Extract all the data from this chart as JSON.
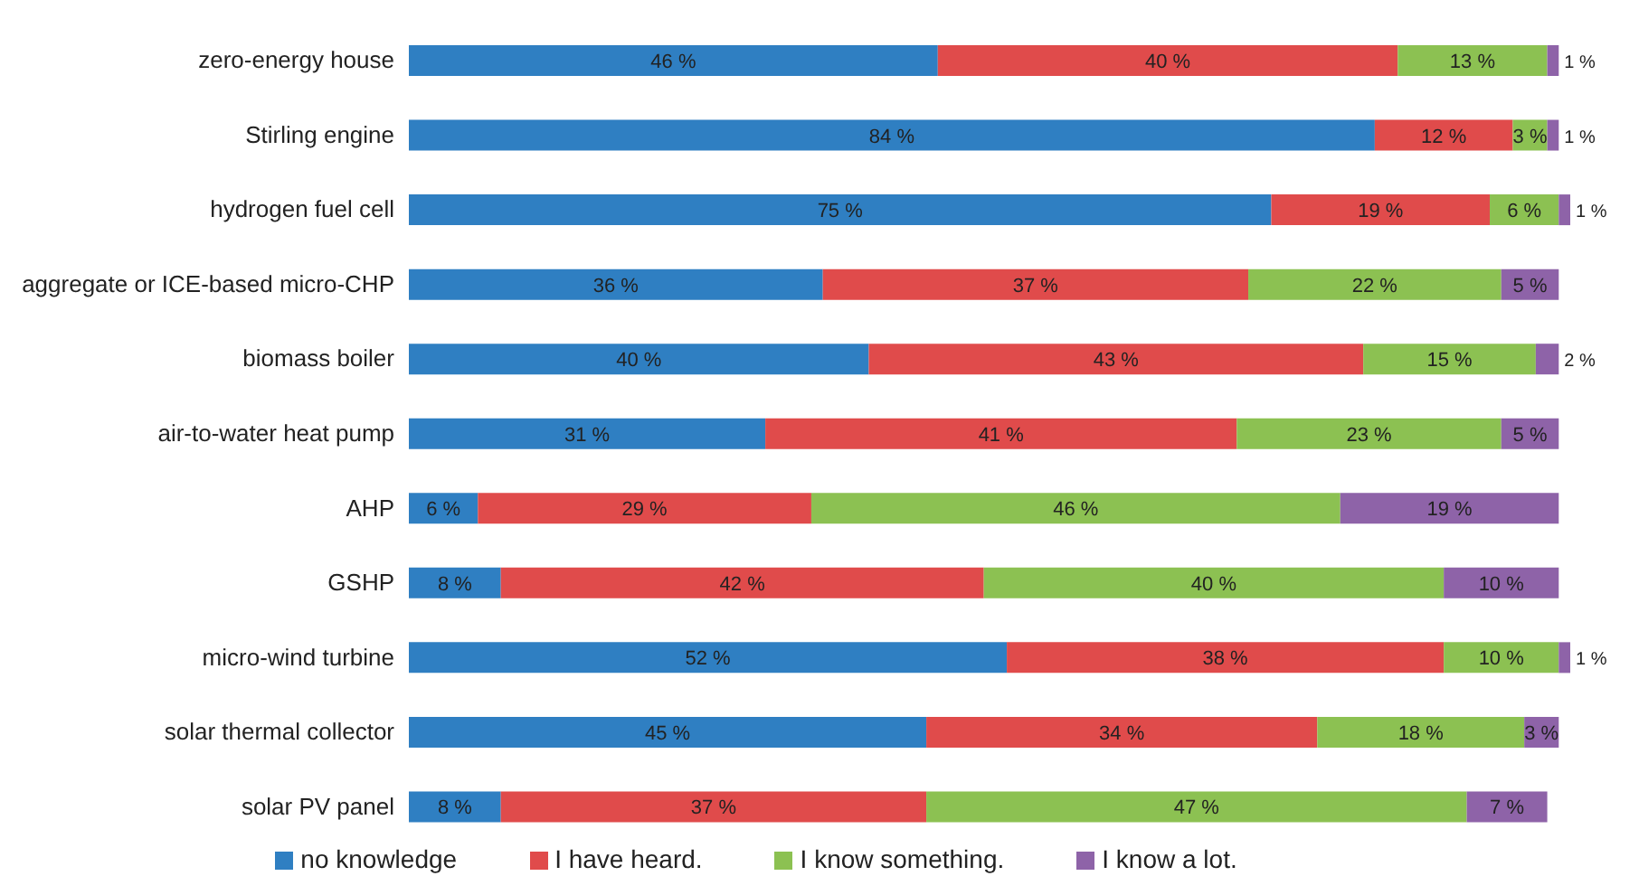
{
  "chart_data": {
    "type": "bar",
    "orientation": "horizontal",
    "stacked": true,
    "legend": "bottom",
    "grid": false,
    "tick_labels": "y",
    "xlim": [
      0,
      101
    ],
    "categories": [
      "zero-energy house",
      "Stirling engine",
      "hydrogen fuel cell",
      "aggregate or ICE-based micro-CHP",
      "biomass boiler",
      "air-to-water heat pump",
      "AHP",
      "GSHP",
      "micro-wind turbine",
      "solar thermal collector",
      "solar PV panel"
    ],
    "series": [
      {
        "name": "no knowledge",
        "color": "#2f7fc2",
        "values": [
          46,
          84,
          75,
          36,
          40,
          31,
          6,
          8,
          52,
          45,
          8
        ],
        "value_labels": [
          "46 %",
          "84 %",
          "75 %",
          "36 %",
          "40 %",
          "31 %",
          "6 %",
          "8 %",
          "52 %",
          "45 %",
          "8 %"
        ]
      },
      {
        "name": "I have heard.",
        "color": "#e04b4b",
        "values": [
          40,
          12,
          19,
          37,
          43,
          41,
          29,
          42,
          38,
          34,
          37
        ],
        "value_labels": [
          "40 %",
          "12 %",
          "19 %",
          "37 %",
          "43 %",
          "41 %",
          "29 %",
          "42 %",
          "38 %",
          "34 %",
          "37 %"
        ]
      },
      {
        "name": "I know something.",
        "color": "#8cc152",
        "values": [
          13,
          3,
          6,
          22,
          15,
          23,
          46,
          40,
          10,
          18,
          47
        ],
        "value_labels": [
          "13 %",
          "3 %",
          "6 %",
          "22 %",
          "15 %",
          "23 %",
          "46 %",
          "40 %",
          "10 %",
          "18 %",
          "47 %"
        ]
      },
      {
        "name": "I know a lot.",
        "color": "#8e63a8",
        "values": [
          1,
          1,
          1,
          5,
          2,
          5,
          19,
          10,
          1,
          3,
          7
        ],
        "value_labels": [
          "1 %",
          "1 %",
          "1 %",
          "5 %",
          "2 %",
          "5 %",
          "19 %",
          "10 %",
          "1 %",
          "3 %",
          "7 %"
        ]
      }
    ]
  }
}
